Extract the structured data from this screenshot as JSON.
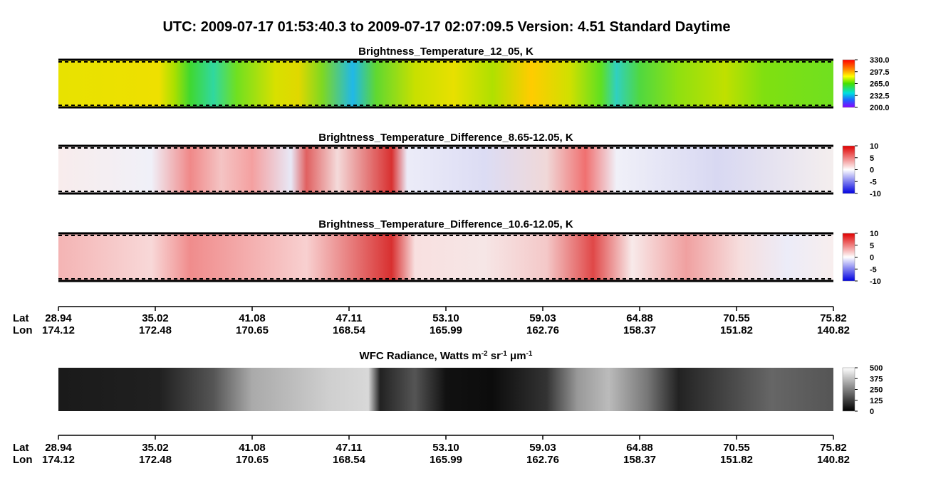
{
  "title": "UTC:  2009-07-17   01:53:40.3  to  2009-07-17   02:07:09.5    Version: 4.51  Standard Daytime",
  "panels": [
    {
      "title": [
        {
          "t": "Brightness_Temperature_12_05, K"
        }
      ],
      "colormap": "rainbow",
      "colorbar": {
        "ticks": [
          {
            "value": 330,
            "label": "330.0"
          },
          {
            "value": 297.5,
            "label": "297.5"
          },
          {
            "value": 265,
            "label": "265.0"
          },
          {
            "value": 232.5,
            "label": "232.5"
          },
          {
            "value": 200,
            "label": "200.0"
          }
        ]
      }
    },
    {
      "title": [
        {
          "t": "Brightness_Temperature_Difference_8.65-12.05, K"
        }
      ],
      "colormap": "diverging",
      "colorbar": {
        "ticks": [
          10,
          5,
          0,
          -5,
          -10
        ]
      }
    },
    {
      "title": [
        {
          "t": "Brightness_Temperature_Difference_10.6-12.05, K"
        }
      ],
      "colormap": "diverging3",
      "colorbar": {
        "ticks": [
          10,
          5,
          0,
          -5,
          -10
        ]
      }
    },
    {
      "title": [
        {
          "t": "WFC Radiance, Watts m"
        },
        {
          "t": "-2",
          "sup": true
        },
        {
          "t": " sr"
        },
        {
          "t": "-1",
          "sup": true
        },
        {
          "t": " μm"
        },
        {
          "t": "-1",
          "sup": true
        }
      ],
      "colormap": "gray",
      "colorbar": {
        "ticks": [
          500,
          375,
          250,
          125,
          0
        ]
      }
    }
  ],
  "axes": [
    {
      "lat_label": "Lat",
      "lon_label": "Lon",
      "ticks": [
        {
          "lat": "28.94",
          "lon": "174.12"
        },
        {
          "lat": "35.02",
          "lon": "172.48"
        },
        {
          "lat": "41.08",
          "lon": "170.65"
        },
        {
          "lat": "47.11",
          "lon": "168.54"
        },
        {
          "lat": "53.10",
          "lon": "165.99"
        },
        {
          "lat": "59.03",
          "lon": "162.76"
        },
        {
          "lat": "64.88",
          "lon": "158.37"
        },
        {
          "lat": "70.55",
          "lon": "151.82"
        },
        {
          "lat": "75.82",
          "lon": "140.82"
        }
      ]
    },
    {
      "lat_label": "Lat",
      "lon_label": "Lon",
      "ticks": [
        {
          "lat": "28.94",
          "lon": "174.12"
        },
        {
          "lat": "35.02",
          "lon": "172.48"
        },
        {
          "lat": "41.08",
          "lon": "170.65"
        },
        {
          "lat": "47.11",
          "lon": "168.54"
        },
        {
          "lat": "53.10",
          "lon": "165.99"
        },
        {
          "lat": "59.03",
          "lon": "162.76"
        },
        {
          "lat": "64.88",
          "lon": "158.37"
        },
        {
          "lat": "70.55",
          "lon": "151.82"
        },
        {
          "lat": "75.82",
          "lon": "140.82"
        }
      ]
    }
  ]
}
